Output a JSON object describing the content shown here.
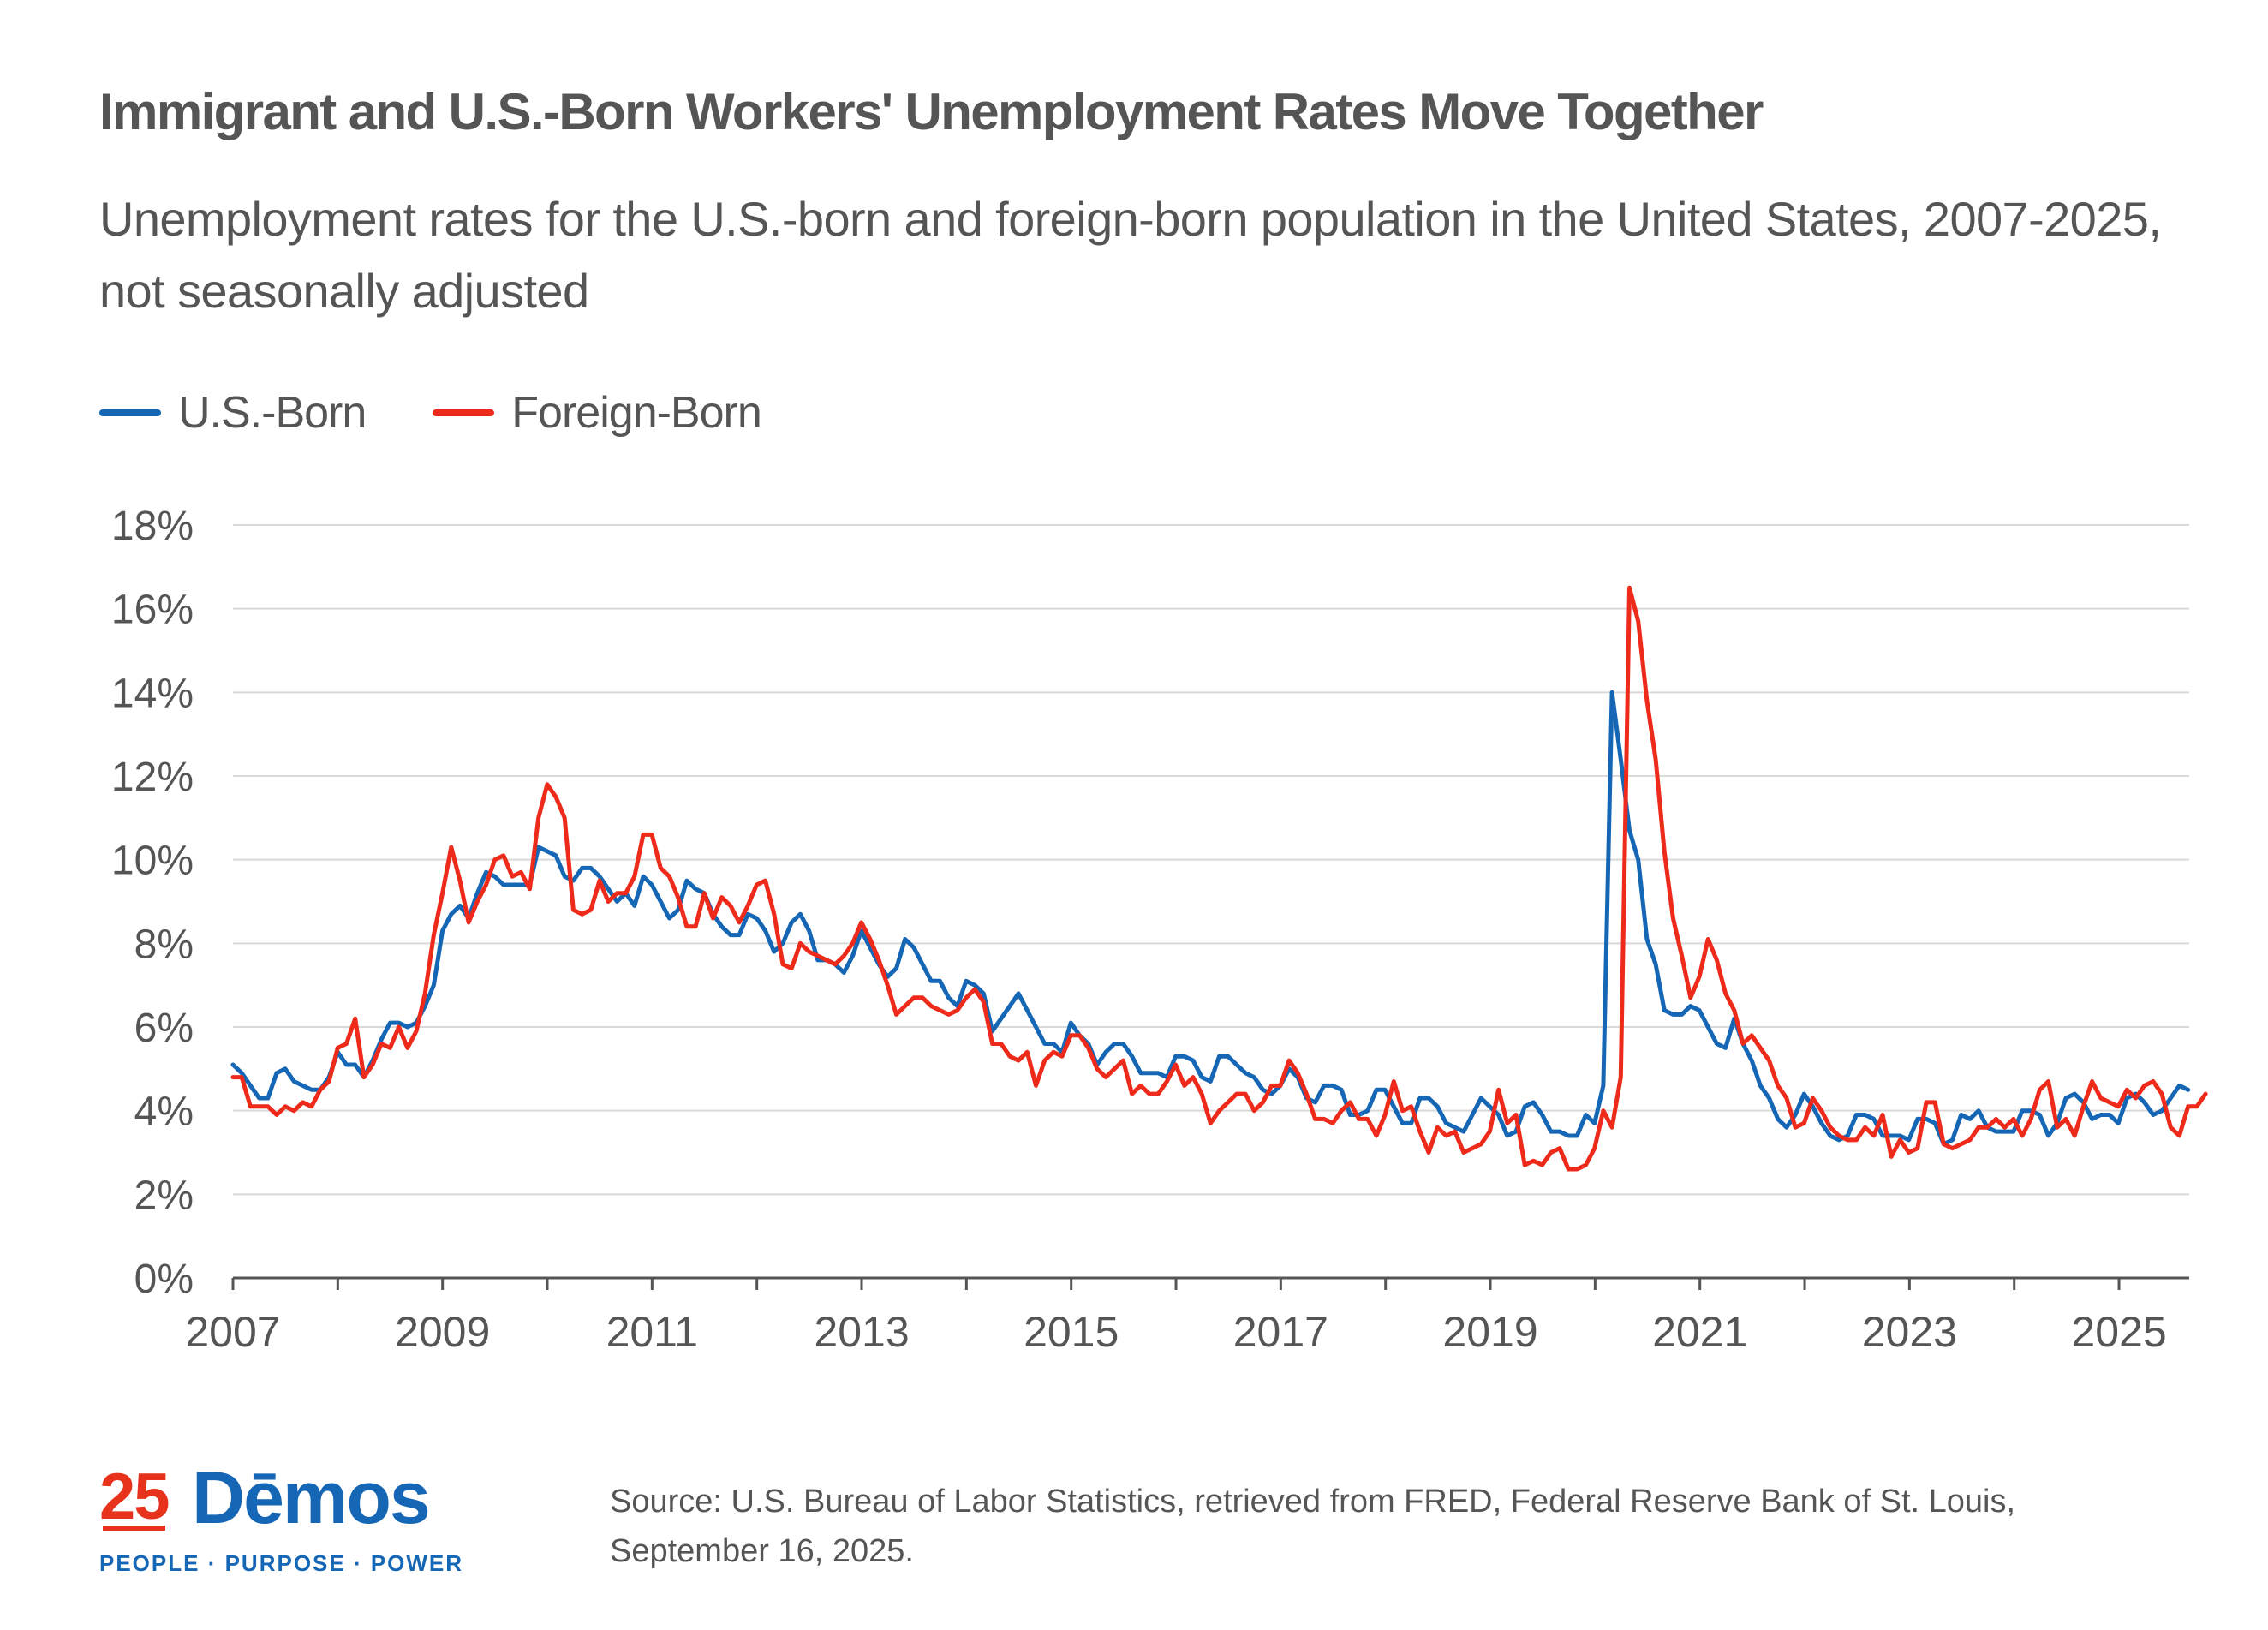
{
  "header": {
    "title": "Immigrant and U.S.-Born Workers' Unemployment Rates Move Together",
    "subtitle": "Unemployment rates for the U.S.-born and foreign-born population in the United States, 2007-2025, not seasonally adjusted"
  },
  "legend": {
    "items": [
      {
        "label": "U.S.-Born",
        "color": "#1566b4"
      },
      {
        "label": "Foreign-Born",
        "color": "#ee2a1b"
      }
    ]
  },
  "footer": {
    "source": "Source: U.S. Bureau of Labor Statistics, retrieved from FRED, Federal Reserve Bank of St. Louis, September 16, 2025.",
    "logo": {
      "number": "25",
      "name": "Dēmos",
      "tagline": "PEOPLE · PURPOSE · POWER"
    }
  },
  "colors": {
    "gridline": "#d9d9d9",
    "axis": "#555555"
  },
  "chart_data": {
    "type": "line",
    "title": "Immigrant and U.S.-Born Workers' Unemployment Rates Move Together",
    "xlabel": "",
    "ylabel": "",
    "x_start": 2007.0,
    "x_step": 0.0833,
    "xlim": [
      2007,
      2025.67
    ],
    "ylim": [
      0,
      18
    ],
    "x_ticks": [
      2007,
      2009,
      2011,
      2013,
      2015,
      2017,
      2019,
      2021,
      2023,
      2025
    ],
    "x_tick_labels": [
      "2007",
      "2009",
      "2011",
      "2013",
      "2015",
      "2017",
      "2019",
      "2021",
      "2023",
      "2025"
    ],
    "y_ticks": [
      0,
      2,
      4,
      6,
      8,
      10,
      12,
      14,
      16,
      18
    ],
    "y_tick_labels": [
      "0%",
      "2%",
      "4%",
      "6%",
      "8%",
      "10%",
      "12%",
      "14%",
      "16%",
      "18%"
    ],
    "grid": true,
    "legend_position": "top-left",
    "series": [
      {
        "name": "U.S.-Born",
        "color": "#1566b4",
        "values": [
          5.1,
          4.9,
          4.6,
          4.3,
          4.3,
          4.9,
          5.0,
          4.7,
          4.6,
          4.5,
          4.5,
          4.8,
          5.4,
          5.1,
          5.1,
          4.8,
          5.2,
          5.7,
          6.1,
          6.1,
          6.0,
          6.1,
          6.5,
          7.0,
          8.3,
          8.7,
          8.9,
          8.6,
          9.2,
          9.7,
          9.6,
          9.4,
          9.4,
          9.4,
          9.4,
          10.3,
          10.2,
          10.1,
          9.6,
          9.5,
          9.8,
          9.8,
          9.6,
          9.3,
          9.0,
          9.2,
          8.9,
          9.6,
          9.4,
          9.0,
          8.6,
          8.8,
          9.5,
          9.3,
          9.2,
          8.7,
          8.4,
          8.2,
          8.2,
          8.7,
          8.6,
          8.3,
          7.8,
          8.0,
          8.5,
          8.7,
          8.3,
          7.6,
          7.6,
          7.5,
          7.3,
          7.7,
          8.3,
          7.9,
          7.5,
          7.2,
          7.4,
          8.1,
          7.9,
          7.5,
          7.1,
          7.1,
          6.7,
          6.5,
          7.1,
          7.0,
          6.8,
          5.9,
          6.2,
          6.5,
          6.8,
          6.4,
          6.0,
          5.6,
          5.6,
          5.4,
          6.1,
          5.8,
          5.6,
          5.1,
          5.4,
          5.6,
          5.6,
          5.3,
          4.9,
          4.9,
          4.9,
          4.8,
          5.3,
          5.3,
          5.2,
          4.8,
          4.7,
          5.3,
          5.3,
          5.1,
          4.9,
          4.8,
          4.5,
          4.4,
          4.6,
          5.0,
          4.8,
          4.3,
          4.2,
          4.6,
          4.6,
          4.5,
          3.9,
          3.9,
          4.0,
          4.5,
          4.5,
          4.1,
          3.7,
          3.7,
          4.3,
          4.3,
          4.1,
          3.7,
          3.6,
          3.5,
          3.9,
          4.3,
          4.1,
          3.9,
          3.4,
          3.5,
          4.1,
          4.2,
          3.9,
          3.5,
          3.5,
          3.4,
          3.4,
          3.9,
          3.7,
          4.6,
          14.0,
          12.4,
          10.7,
          10.0,
          8.1,
          7.5,
          6.4,
          6.3,
          6.3,
          6.5,
          6.4,
          6.0,
          5.6,
          5.5,
          6.2,
          5.6,
          5.2,
          4.6,
          4.3,
          3.8,
          3.6,
          3.9,
          4.4,
          4.1,
          3.7,
          3.4,
          3.3,
          3.4,
          3.9,
          3.9,
          3.8,
          3.4,
          3.4,
          3.4,
          3.3,
          3.8,
          3.8,
          3.7,
          3.2,
          3.3,
          3.9,
          3.8,
          4.0,
          3.6,
          3.5,
          3.5,
          3.5,
          4.0,
          4.0,
          3.9,
          3.4,
          3.7,
          4.3,
          4.4,
          4.2,
          3.8,
          3.9,
          3.9,
          3.7,
          4.3,
          4.4,
          4.2,
          3.9,
          4.0,
          4.3,
          4.6,
          4.5
        ]
      },
      {
        "name": "Foreign-Born",
        "color": "#ee2a1b",
        "values": [
          4.8,
          4.8,
          4.1,
          4.1,
          4.1,
          3.9,
          4.1,
          4.0,
          4.2,
          4.1,
          4.5,
          4.7,
          5.5,
          5.6,
          6.2,
          4.8,
          5.1,
          5.6,
          5.5,
          6.0,
          5.5,
          5.9,
          6.8,
          8.2,
          9.2,
          10.3,
          9.5,
          8.5,
          9.0,
          9.4,
          10.0,
          10.1,
          9.6,
          9.7,
          9.3,
          11.0,
          11.8,
          11.5,
          11.0,
          8.8,
          8.7,
          8.8,
          9.5,
          9.0,
          9.2,
          9.2,
          9.6,
          10.6,
          10.6,
          9.8,
          9.6,
          9.1,
          8.4,
          8.4,
          9.2,
          8.6,
          9.1,
          8.9,
          8.5,
          8.9,
          9.4,
          9.5,
          8.7,
          7.5,
          7.4,
          8.0,
          7.8,
          7.7,
          7.6,
          7.5,
          7.7,
          8.0,
          8.5,
          8.1,
          7.6,
          7.0,
          6.3,
          6.5,
          6.7,
          6.7,
          6.5,
          6.4,
          6.3,
          6.4,
          6.7,
          6.9,
          6.6,
          5.6,
          5.6,
          5.3,
          5.2,
          5.4,
          4.6,
          5.2,
          5.4,
          5.3,
          5.8,
          5.8,
          5.5,
          5.0,
          4.8,
          5.0,
          5.2,
          4.4,
          4.6,
          4.4,
          4.4,
          4.7,
          5.1,
          4.6,
          4.8,
          4.4,
          3.7,
          4.0,
          4.2,
          4.4,
          4.4,
          4.0,
          4.2,
          4.6,
          4.6,
          5.2,
          4.9,
          4.4,
          3.8,
          3.8,
          3.7,
          4.0,
          4.2,
          3.8,
          3.8,
          3.4,
          3.9,
          4.7,
          4.0,
          4.1,
          3.5,
          3.0,
          3.6,
          3.4,
          3.5,
          3.0,
          3.1,
          3.2,
          3.5,
          4.5,
          3.7,
          3.9,
          2.7,
          2.8,
          2.7,
          3.0,
          3.1,
          2.6,
          2.6,
          2.7,
          3.1,
          4.0,
          3.6,
          4.8,
          16.5,
          15.7,
          13.8,
          12.4,
          10.2,
          8.6,
          7.7,
          6.7,
          7.2,
          8.1,
          7.6,
          6.8,
          6.4,
          5.6,
          5.8,
          5.5,
          5.2,
          4.6,
          4.3,
          3.6,
          3.7,
          4.3,
          4.0,
          3.6,
          3.4,
          3.3,
          3.3,
          3.6,
          3.4,
          3.9,
          2.9,
          3.3,
          3.0,
          3.1,
          4.2,
          4.2,
          3.2,
          3.1,
          3.2,
          3.3,
          3.6,
          3.6,
          3.8,
          3.6,
          3.8,
          3.4,
          3.8,
          4.5,
          4.7,
          3.6,
          3.8,
          3.4,
          4.1,
          4.7,
          4.3,
          4.2,
          4.1,
          4.5,
          4.3,
          4.6,
          4.7,
          4.4,
          3.6,
          3.4,
          4.1,
          4.1,
          4.4
        ]
      }
    ]
  }
}
